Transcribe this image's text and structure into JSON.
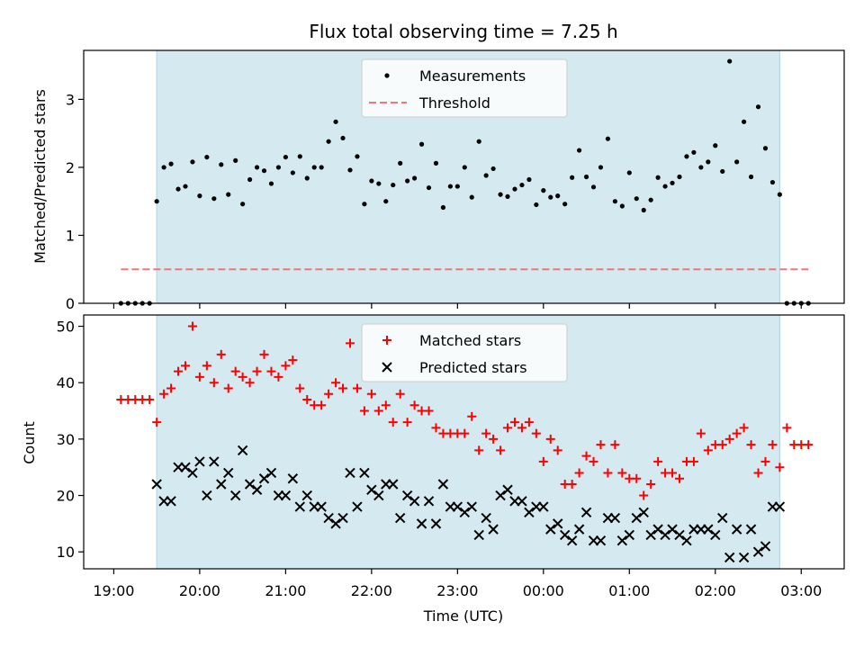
{
  "title": "Flux total observing time = 7.25 h",
  "colors": {
    "band": "#d4eaf0",
    "band_edge": "#b6dbe6",
    "measurement": "#000000",
    "threshold": "#f47474",
    "matched": "#ff0000",
    "predicted": "#000000"
  },
  "chart_data": [
    {
      "type": "scatter",
      "ylabel": "Matched/Predicted stars",
      "xlim": [
        18.65,
        3.5
      ],
      "ylim": [
        0,
        3.72
      ],
      "yticks": [
        0,
        1,
        2,
        3
      ],
      "ytick_labels": [
        "0",
        "1",
        "2",
        "3"
      ],
      "shaded_span": [
        "19:30",
        "02:45"
      ],
      "legend": {
        "placement": "top-center",
        "entries": [
          {
            "label": "Measurements",
            "marker": "dot"
          },
          {
            "label": "Threshold",
            "marker": "dashed-line"
          }
        ]
      },
      "threshold": {
        "value": 0.5,
        "x_start": "19:05",
        "x_end": "03:05"
      },
      "series": [
        {
          "name": "Measurements",
          "x": [
            "19:05",
            "19:10",
            "19:15",
            "19:20",
            "19:25",
            "19:30",
            "19:35",
            "19:40",
            "19:45",
            "19:50",
            "19:55",
            "20:00",
            "20:05",
            "20:10",
            "20:15",
            "20:20",
            "20:25",
            "20:30",
            "20:35",
            "20:40",
            "20:45",
            "20:50",
            "20:55",
            "21:00",
            "21:05",
            "21:10",
            "21:15",
            "21:20",
            "21:25",
            "21:30",
            "21:35",
            "21:40",
            "21:45",
            "21:50",
            "21:55",
            "22:00",
            "22:05",
            "22:10",
            "22:15",
            "22:20",
            "22:25",
            "22:30",
            "22:35",
            "22:40",
            "22:45",
            "22:50",
            "22:55",
            "23:00",
            "23:05",
            "23:10",
            "23:15",
            "23:20",
            "23:25",
            "23:30",
            "23:35",
            "23:40",
            "23:45",
            "23:50",
            "23:55",
            "00:00",
            "00:05",
            "00:10",
            "00:15",
            "00:20",
            "00:25",
            "00:30",
            "00:35",
            "00:40",
            "00:45",
            "00:50",
            "00:55",
            "01:00",
            "01:05",
            "01:10",
            "01:15",
            "01:20",
            "01:25",
            "01:30",
            "01:35",
            "01:40",
            "01:45",
            "01:50",
            "01:55",
            "02:00",
            "02:05",
            "02:10",
            "02:15",
            "02:20",
            "02:25",
            "02:30",
            "02:35",
            "02:40",
            "02:45",
            "02:50",
            "02:55",
            "03:00",
            "03:05"
          ],
          "values": [
            0,
            0,
            0,
            0,
            0,
            1.5,
            2.0,
            2.05,
            1.68,
            1.72,
            2.08,
            1.58,
            2.15,
            1.54,
            2.04,
            1.6,
            2.1,
            1.46,
            1.82,
            2.0,
            1.95,
            1.76,
            2.0,
            2.15,
            1.92,
            2.16,
            1.84,
            2.0,
            2.0,
            2.38,
            2.67,
            2.43,
            1.96,
            2.16,
            1.46,
            1.8,
            1.76,
            1.5,
            1.74,
            2.06,
            1.8,
            1.84,
            2.34,
            1.7,
            2.06,
            1.41,
            1.72,
            1.72,
            2.0,
            1.56,
            2.38,
            1.88,
            1.98,
            1.6,
            1.57,
            1.68,
            1.74,
            1.82,
            1.45,
            1.66,
            1.56,
            1.58,
            1.46,
            1.85,
            2.25,
            1.86,
            1.71,
            2.0,
            2.42,
            1.5,
            1.43,
            1.92,
            1.54,
            1.37,
            1.52,
            1.85,
            1.72,
            1.77,
            1.86,
            2.16,
            2.22,
            2.0,
            2.08,
            2.32,
            1.94,
            3.56,
            2.08,
            2.67,
            1.86,
            2.89,
            2.28,
            1.78,
            1.6,
            0,
            0,
            0,
            0
          ]
        }
      ]
    },
    {
      "type": "scatter",
      "xlabel": "Time (UTC)",
      "ylabel": "Count",
      "xlim": [
        18.65,
        3.5
      ],
      "ylim": [
        7,
        52
      ],
      "yticks": [
        10,
        20,
        30,
        40,
        50
      ],
      "ytick_labels": [
        "10",
        "20",
        "30",
        "40",
        "50"
      ],
      "xtick_labels": [
        "19:00",
        "20:00",
        "21:00",
        "22:00",
        "23:00",
        "00:00",
        "01:00",
        "02:00",
        "03:00"
      ],
      "shaded_span": [
        "19:30",
        "02:45"
      ],
      "legend": {
        "placement": "top-center",
        "entries": [
          {
            "label": "Matched stars",
            "marker": "plus"
          },
          {
            "label": "Predicted stars",
            "marker": "x"
          }
        ]
      },
      "series": [
        {
          "name": "Matched stars",
          "x": [
            "19:05",
            "19:10",
            "19:15",
            "19:20",
            "19:25",
            "19:30",
            "19:35",
            "19:40",
            "19:45",
            "19:50",
            "19:55",
            "20:00",
            "20:05",
            "20:10",
            "20:15",
            "20:20",
            "20:25",
            "20:30",
            "20:35",
            "20:40",
            "20:45",
            "20:50",
            "20:55",
            "21:00",
            "21:05",
            "21:10",
            "21:15",
            "21:20",
            "21:25",
            "21:30",
            "21:35",
            "21:40",
            "21:45",
            "21:50",
            "21:55",
            "22:00",
            "22:05",
            "22:10",
            "22:15",
            "22:20",
            "22:25",
            "22:30",
            "22:35",
            "22:40",
            "22:45",
            "22:50",
            "22:55",
            "23:00",
            "23:05",
            "23:10",
            "23:15",
            "23:20",
            "23:25",
            "23:30",
            "23:35",
            "23:40",
            "23:45",
            "23:50",
            "23:55",
            "00:00",
            "00:05",
            "00:10",
            "00:15",
            "00:20",
            "00:25",
            "00:30",
            "00:35",
            "00:40",
            "00:45",
            "00:50",
            "00:55",
            "01:00",
            "01:05",
            "01:10",
            "01:15",
            "01:20",
            "01:25",
            "01:30",
            "01:35",
            "01:40",
            "01:45",
            "01:50",
            "01:55",
            "02:00",
            "02:05",
            "02:10",
            "02:15",
            "02:20",
            "02:25",
            "02:30",
            "02:35",
            "02:40",
            "02:45",
            "02:50",
            "02:55",
            "03:00",
            "03:05"
          ],
          "values": [
            37,
            37,
            37,
            37,
            37,
            33,
            38,
            39,
            42,
            43,
            50,
            41,
            43,
            40,
            45,
            39,
            42,
            41,
            40,
            42,
            45,
            42,
            41,
            43,
            44,
            39,
            37,
            36,
            36,
            38,
            40,
            39,
            47,
            39,
            35,
            38,
            35,
            36,
            33,
            38,
            33,
            36,
            35,
            35,
            32,
            31,
            31,
            31,
            31,
            34,
            28,
            31,
            30,
            28,
            32,
            33,
            32,
            33,
            31,
            26,
            30,
            28,
            22,
            22,
            24,
            27,
            26,
            29,
            24,
            29,
            24,
            23,
            23,
            20,
            22,
            26,
            24,
            24,
            23,
            26,
            26,
            31,
            28,
            29,
            29,
            30,
            31,
            32,
            29,
            24,
            26,
            29,
            25,
            32,
            29,
            29,
            29
          ]
        },
        {
          "name": "Predicted stars",
          "x": [
            "19:30",
            "19:35",
            "19:40",
            "19:45",
            "19:50",
            "19:55",
            "20:00",
            "20:05",
            "20:10",
            "20:15",
            "20:20",
            "20:25",
            "20:30",
            "20:35",
            "20:40",
            "20:45",
            "20:50",
            "20:55",
            "21:00",
            "21:05",
            "21:10",
            "21:15",
            "21:20",
            "21:25",
            "21:30",
            "21:35",
            "21:40",
            "21:45",
            "21:50",
            "21:55",
            "22:00",
            "22:05",
            "22:10",
            "22:15",
            "22:20",
            "22:25",
            "22:30",
            "22:35",
            "22:40",
            "22:45",
            "22:50",
            "22:55",
            "23:00",
            "23:05",
            "23:10",
            "23:15",
            "23:20",
            "23:25",
            "23:30",
            "23:35",
            "23:40",
            "23:45",
            "23:50",
            "23:55",
            "00:00",
            "00:05",
            "00:10",
            "00:15",
            "00:20",
            "00:25",
            "00:30",
            "00:35",
            "00:40",
            "00:45",
            "00:50",
            "00:55",
            "01:00",
            "01:05",
            "01:10",
            "01:15",
            "01:20",
            "01:25",
            "01:30",
            "01:35",
            "01:40",
            "01:45",
            "01:50",
            "01:55",
            "02:00",
            "02:05",
            "02:10",
            "02:15",
            "02:20",
            "02:25",
            "02:30",
            "02:35",
            "02:40",
            "02:45"
          ],
          "values": [
            22,
            19,
            19,
            25,
            25,
            24,
            26,
            20,
            26,
            22,
            24,
            20,
            28,
            22,
            21,
            23,
            24,
            20,
            20,
            23,
            18,
            20,
            18,
            18,
            16,
            15,
            16,
            24,
            18,
            24,
            21,
            20,
            22,
            22,
            16,
            20,
            19,
            15,
            19,
            15,
            22,
            18,
            18,
            17,
            18,
            13,
            16,
            14,
            20,
            21,
            19,
            19,
            17,
            18,
            18,
            14,
            15,
            13,
            12,
            14,
            17,
            12,
            12,
            16,
            16,
            12,
            13,
            16,
            17,
            13,
            14,
            13,
            14,
            13,
            12,
            14,
            14,
            14,
            13,
            16,
            9,
            14,
            9,
            14,
            10,
            11,
            18,
            18
          ]
        }
      ]
    }
  ]
}
